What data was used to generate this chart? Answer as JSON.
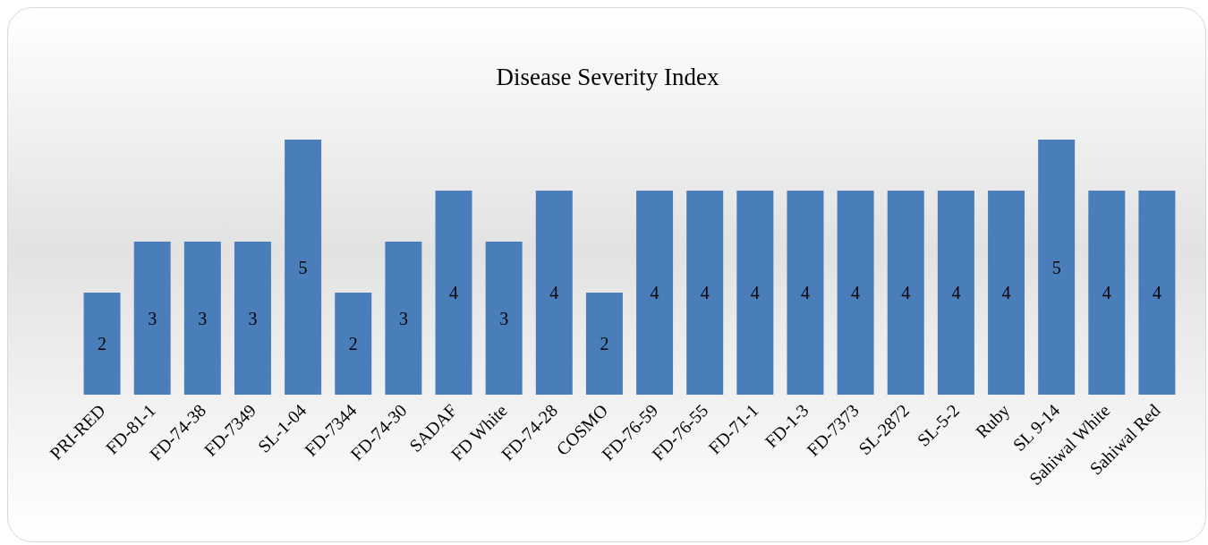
{
  "chart_data": {
    "type": "bar",
    "title": "Disease Severity Index",
    "categories": [
      "PRI-RED",
      "FD-81-1",
      "FD-74-38",
      "FD-7349",
      "SL-1-04",
      "FD-7344",
      "FD-74-30",
      "SADAF",
      "FD White",
      "FD-74-28",
      "COSMO",
      "FD-76-59",
      "FD-76-55",
      "FD-71-1",
      "FD-1-3",
      "FD-7373",
      "SL-2872",
      "SL-5-2",
      "Ruby",
      "SL 9-14",
      "Sahiwal White",
      "Sahiwal Red"
    ],
    "values": [
      2,
      3,
      3,
      3,
      5,
      2,
      3,
      4,
      3,
      4,
      2,
      4,
      4,
      4,
      4,
      4,
      4,
      4,
      4,
      5,
      4,
      4
    ],
    "color": "#4a7ebb",
    "data_labels": true
  }
}
